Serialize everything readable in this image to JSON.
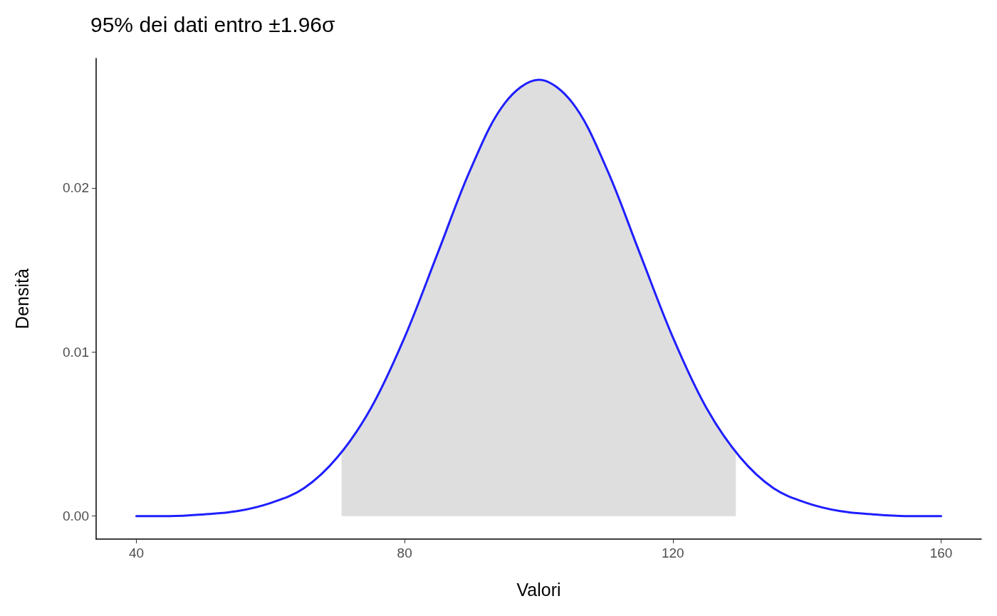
{
  "chart_data": {
    "type": "line",
    "title": "95% dei dati entro ±1.96σ",
    "xlabel": "Valori",
    "ylabel": "Densità",
    "xlim": [
      34,
      166
    ],
    "xticks": [
      40,
      80,
      120,
      160
    ],
    "ylim": [
      -0.0014,
      0.0279
    ],
    "yticks": [
      {
        "value": 0,
        "label": "0.00"
      },
      0.01,
      0.02
    ],
    "grid": false,
    "marker": "none",
    "line_style": "solid",
    "series": [
      {
        "type": "area",
        "color": "#dedede",
        "x": [
          70.6,
          75,
          80,
          85,
          90,
          95,
          100,
          105,
          110,
          115,
          120,
          125,
          129.4
        ],
        "values": [
          0.0039,
          0.0066,
          0.0109,
          0.0161,
          0.0213,
          0.0252,
          0.0266,
          0.0252,
          0.0213,
          0.0161,
          0.0109,
          0.0066,
          0.0039
        ]
      },
      {
        "color": "#1f1fff",
        "x": [
          40,
          45,
          50,
          55,
          60,
          65,
          70,
          75,
          80,
          85,
          90,
          95,
          100,
          105,
          110,
          115,
          120,
          125,
          130,
          135,
          140,
          145,
          150,
          155,
          160
        ],
        "values": [
          0.0,
          0.0,
          0.0001,
          0.0003,
          0.0008,
          0.0017,
          0.0036,
          0.0066,
          0.0109,
          0.0161,
          0.0213,
          0.0252,
          0.0266,
          0.0252,
          0.0213,
          0.0161,
          0.0109,
          0.0066,
          0.0036,
          0.0017,
          0.0008,
          0.0003,
          0.0001,
          0.0,
          0.0
        ]
      }
    ]
  }
}
